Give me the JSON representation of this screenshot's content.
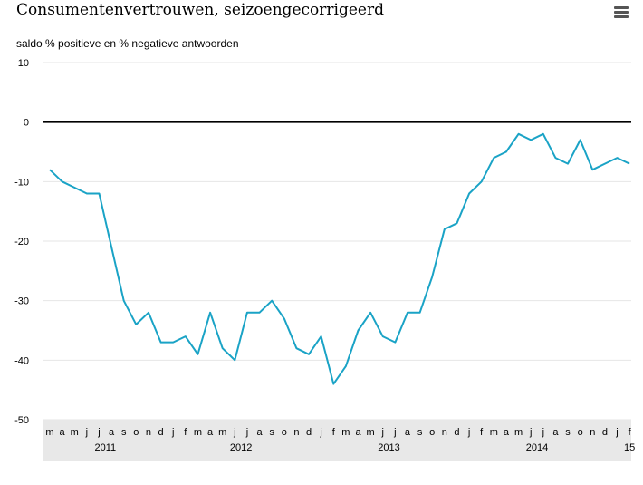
{
  "header": {
    "menu_icon": "hamburger-menu-icon"
  },
  "chart_data": {
    "type": "line",
    "title": "Consumentenvertrouwen, seizoengecorrigeerd",
    "subtitle": "saldo % positieve en % negatieve antwoorden",
    "xlabel": "",
    "ylabel": "",
    "ylim": [
      -50,
      10
    ],
    "yticks": [
      "10",
      "0",
      "-10",
      "-20",
      "-30",
      "-40",
      "-50"
    ],
    "grid": true,
    "zero_line": true,
    "categories": [
      "m",
      "a",
      "m",
      "j",
      "j",
      "a",
      "s",
      "o",
      "n",
      "d",
      "j",
      "f",
      "m",
      "a",
      "m",
      "j",
      "j",
      "a",
      "s",
      "o",
      "n",
      "d",
      "j",
      "f",
      "m",
      "a",
      "m",
      "j",
      "j",
      "a",
      "s",
      "o",
      "n",
      "d",
      "j",
      "f",
      "m",
      "a",
      "m",
      "j",
      "j",
      "a",
      "s",
      "o",
      "n",
      "d",
      "j",
      "f"
    ],
    "year_labels": [
      {
        "label": "2011",
        "index": 4.5
      },
      {
        "label": "2012",
        "index": 15.5
      },
      {
        "label": "2013",
        "index": 27.5
      },
      {
        "label": "2014",
        "index": 39.5
      },
      {
        "label": "15",
        "index": 47
      }
    ],
    "series": [
      {
        "color": "#1aa3c6",
        "values": [
          -8,
          -10,
          -11,
          -12,
          -12,
          -21,
          -30,
          -34,
          -32,
          -37,
          -37,
          -36,
          -39,
          -32,
          -38,
          -40,
          -32,
          -32,
          -30,
          -33,
          -38,
          -39,
          -36,
          -44,
          -41,
          -35,
          -32,
          -36,
          -37,
          -32,
          -32,
          -26,
          -18,
          -17,
          -12,
          -10,
          -6,
          -5,
          -2,
          -3,
          -2,
          -6,
          -7,
          -3,
          -8,
          -7,
          -6,
          -7
        ]
      }
    ],
    "colors": {
      "line": "#1aa3c6",
      "axis_band": "#e8e8e8",
      "grid": "#e6e6e6",
      "zero": "#000000"
    }
  }
}
